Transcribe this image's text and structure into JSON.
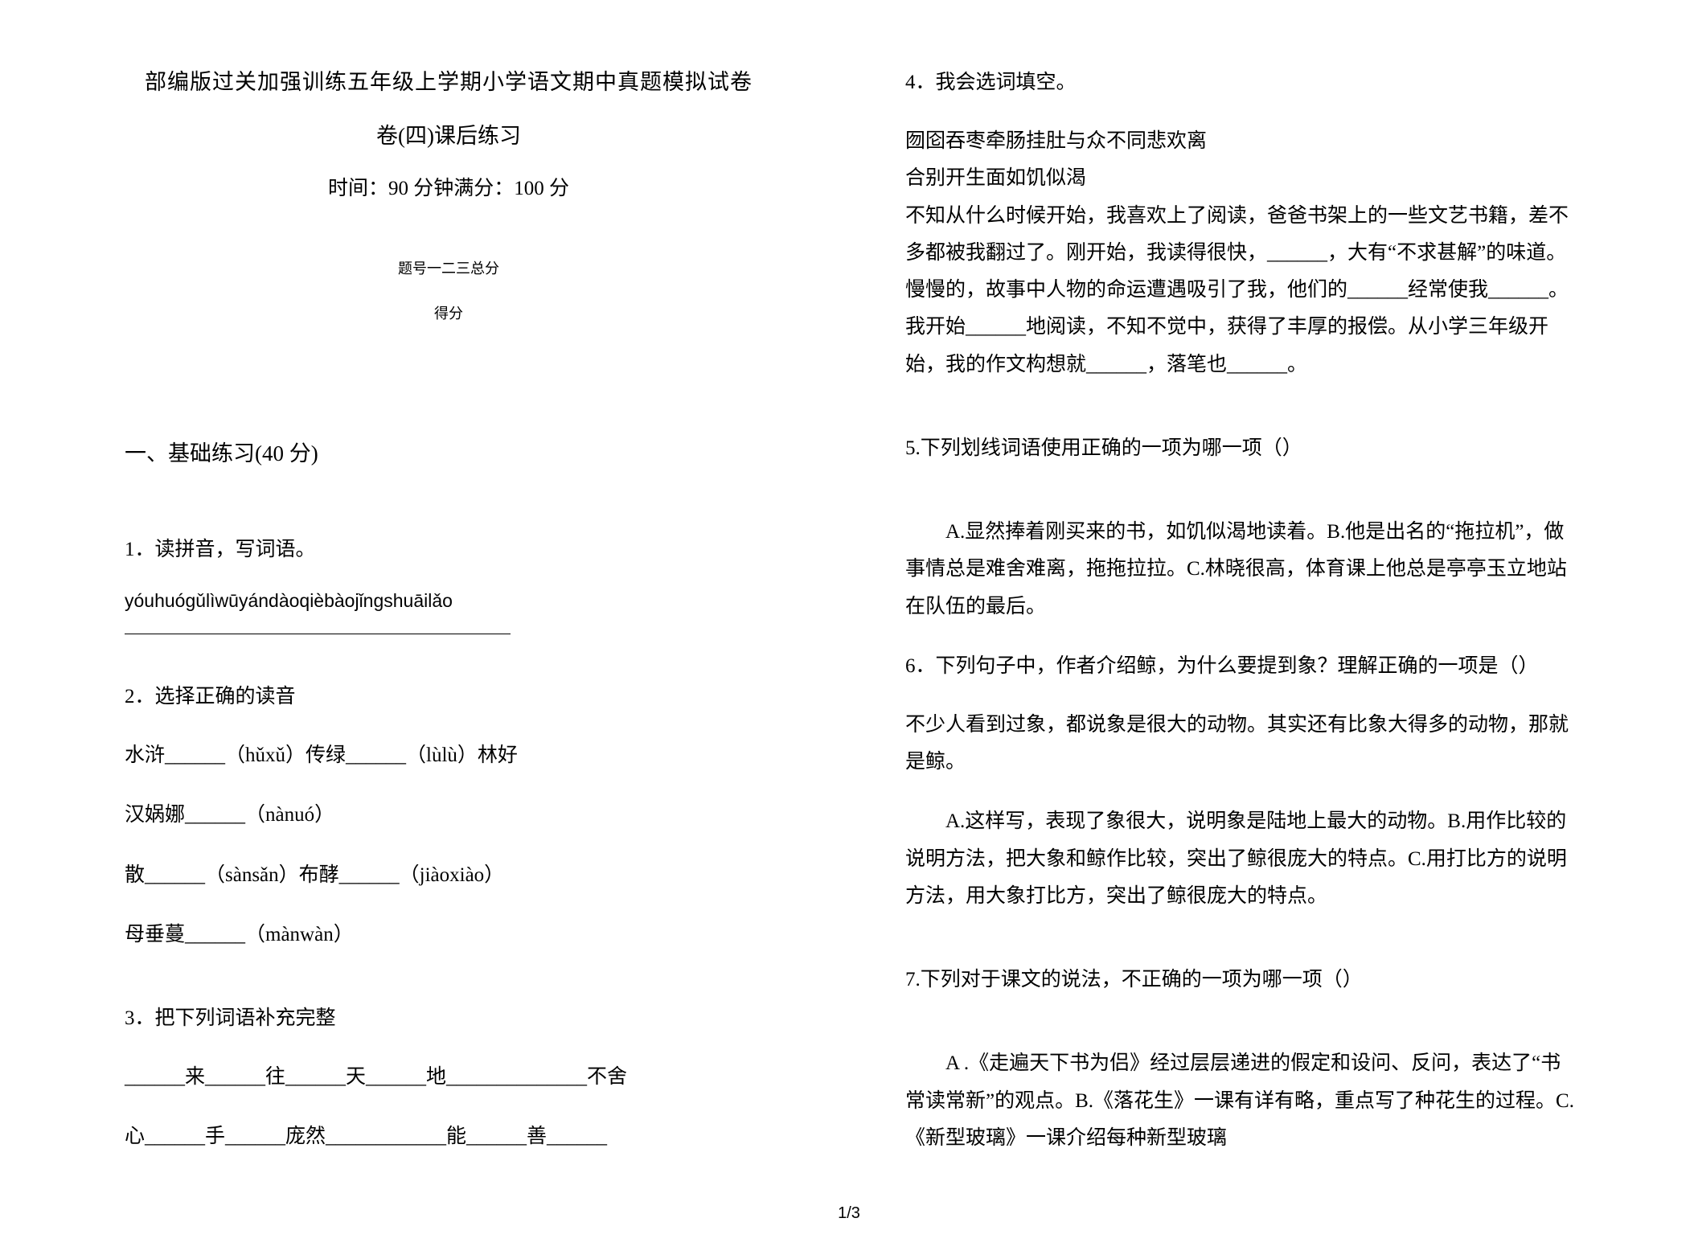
{
  "document": {
    "background_color": "#ffffff",
    "text_color": "#000000",
    "font_family_cn": "SimSun",
    "font_family_latin": "Arial",
    "base_font_size": 25,
    "title_font_size": 27,
    "small_font_size": 18
  },
  "header": {
    "title_line1": "部编版过关加强训练五年级上学期小学语文期中真题模拟试卷",
    "title_line2": "卷(四)课后练习",
    "time_score": "时间：90 分钟满分：100 分",
    "table_header": "题号一二三总分",
    "table_score": "得分"
  },
  "section1": {
    "title": "一、基础练习(40 分)"
  },
  "q1": {
    "number": "1．",
    "text": "读拼音，写词语。",
    "pinyin": "yóuhuógǔlìwūyándàoqièbàojǐngshuāilǎo"
  },
  "q2": {
    "number": "2．",
    "text": "选择正确的读音",
    "line1": "水浒______（hǔxǔ）传绿______（lùlù）林好",
    "line2": "汉娲娜______（nànuó）",
    "line3": "散______（sànsǎn）布酵______（jiàoxiào）",
    "line4": "母垂蔓______（mànwàn）"
  },
  "q3": {
    "number": "3．",
    "text": "把下列词语补充完整",
    "line1": "______来______往______天______地______________不舍",
    "line2": "心______手______庞然____________能______善______"
  },
  "q4": {
    "number": "4．",
    "text": "我会选词填空。",
    "para1": "囫囵吞枣牵肠挂肚与众不同悲欢离",
    "para2": "合别开生面如饥似渴",
    "para3": "不知从什么时候开始，我喜欢上了阅读，爸爸书架上的一些文艺书籍，差不多都被我翻过了。刚开始，我读得很快，______，大有“不求甚解”的味道。慢慢的，故事中人物的命运遭遇吸引了我，他们的______经常使我______。我开始______地阅读，不知不觉中，获得了丰厚的报偿。从小学三年级开始，我的作文构想就______，落笔也______。"
  },
  "q5": {
    "text": "5.下列划线词语使用正确的一项为哪一项（）",
    "optionA": "A.显然捧着刚买来的书，如饥似渴地读着。B.他是出名的“拖拉机”，做事情总是难舍难离，拖拖拉拉。C.林晓很高，体育课上他总是亭亭玉立地站在队伍的最后。"
  },
  "q6": {
    "number": "6．",
    "text": "下列句子中，作者介绍鲸，为什么要提到象？理解正确的一项是（）",
    "para": "不少人看到过象，都说象是很大的动物。其实还有比象大得多的动物，那就是鲸。",
    "optionA": "A.这样写，表现了象很大，说明象是陆地上最大的动物。B.用作比较的说明方法，把大象和鲸作比较，突出了鲸很庞大的特点。C.用打比方的说明方法，用大象打比方，突出了鲸很庞大的特点。"
  },
  "q7": {
    "text": "7.下列对于课文的说法，不正确的一项为哪一项（）",
    "optionA": "A .《走遍天下书为侣》经过层层递进的假定和设问、反问，表达了“书常读常新”的观点。B.《落花生》一课有详有略，重点写了种花生的过程。C.《新型玻璃》一课介绍每种新型玻璃"
  },
  "page_number": "1/3"
}
